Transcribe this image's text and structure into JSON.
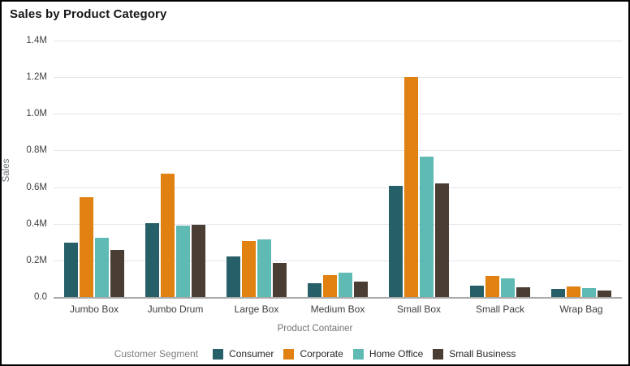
{
  "chart_data": {
    "type": "bar",
    "title": "Sales by Product Category",
    "xlabel": "Product Container",
    "ylabel": "Sales",
    "legend_title": "Customer Segment",
    "legend_position": "bottom",
    "grid": true,
    "ylim": [
      0,
      1.4
    ],
    "yticks": [
      {
        "value": 0.0,
        "label": "0.0"
      },
      {
        "value": 0.2,
        "label": "0.2M"
      },
      {
        "value": 0.4,
        "label": "0.4M"
      },
      {
        "value": 0.6,
        "label": "0.6M"
      },
      {
        "value": 0.8,
        "label": "0.8M"
      },
      {
        "value": 1.0,
        "label": "1.0M"
      },
      {
        "value": 1.2,
        "label": "1.2M"
      },
      {
        "value": 1.4,
        "label": "1.4M"
      }
    ],
    "categories": [
      "Jumbo Box",
      "Jumbo Drum",
      "Large Box",
      "Medium Box",
      "Small Box",
      "Small Pack",
      "Wrap Bag"
    ],
    "series": [
      {
        "name": "Consumer",
        "color": "#275f69",
        "values": [
          0.295,
          0.405,
          0.22,
          0.075,
          0.605,
          0.06,
          0.046
        ]
      },
      {
        "name": "Corporate",
        "color": "#e08112",
        "values": [
          0.545,
          0.675,
          0.305,
          0.12,
          1.2,
          0.115,
          0.058
        ]
      },
      {
        "name": "Home Office",
        "color": "#5fbab3",
        "values": [
          0.325,
          0.39,
          0.315,
          0.135,
          0.765,
          0.1,
          0.05
        ]
      },
      {
        "name": "Small Business",
        "color": "#4a3d33",
        "values": [
          0.255,
          0.395,
          0.185,
          0.085,
          0.62,
          0.055,
          0.035
        ]
      }
    ],
    "style": {
      "gridline_color": "#e5e5ec",
      "axis_line_color": "#a9a9a9",
      "title_color": "#15161a",
      "tick_label_color": "#3d3d3d",
      "axis_title_color": "#717171",
      "legend_label_color": "#262626"
    }
  }
}
